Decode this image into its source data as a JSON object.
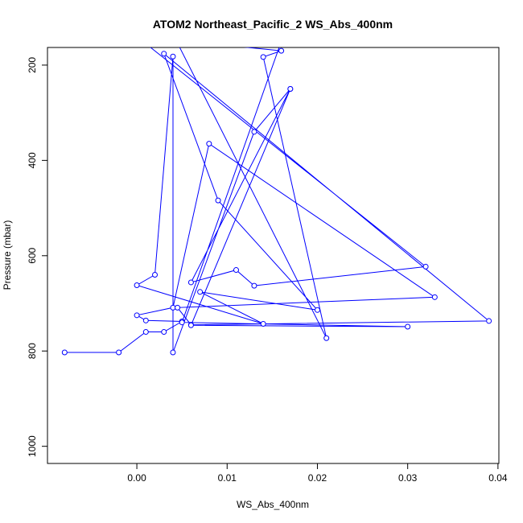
{
  "chart_data": {
    "type": "line",
    "title": "ATOM2 Northeast_Pacific_2 WS_Abs_400nm",
    "xlabel": "WS_Abs_400nm",
    "ylabel": "Pressure (mbar)",
    "xlim": [
      -0.0099,
      0.0401
    ],
    "ylim": [
      1036,
      163
    ],
    "y_reversed": true,
    "grid": false,
    "x_ticks": [
      0.0,
      0.01,
      0.02,
      0.03,
      0.04
    ],
    "x_tick_labels": [
      "0.00",
      "0.01",
      "0.02",
      "0.03",
      "0.04"
    ],
    "y_ticks": [
      200,
      400,
      600,
      800,
      1000
    ],
    "y_tick_labels": [
      "200",
      "400",
      "600",
      "800",
      "1000"
    ],
    "color": "#0000ff",
    "series": [
      {
        "x": [
          -0.008,
          -0.002,
          0.001,
          0.003,
          0.005,
          0.001,
          0.0,
          0.004,
          0.008,
          0.033,
          0.0045,
          0.006,
          0.039,
          0.003,
          0.009,
          0.02,
          0.007,
          0.014,
          0.0,
          0.002,
          0.004,
          0.004,
          0.013,
          0.017,
          0.006,
          0.011,
          0.013,
          0.032,
          0.0,
          0.016,
          0.014,
          0.021,
          0.004,
          0.016,
          0.005,
          0.03,
          0.006,
          0.017
        ],
        "y": [
          803,
          803,
          760,
          760,
          738,
          736,
          725,
          709,
          365,
          687,
          709,
          745,
          737,
          176,
          484,
          714,
          676,
          743,
          662,
          640,
          182,
          803,
          340,
          250,
          656,
          630,
          663,
          623,
          140,
          170,
          183,
          773,
          135,
          150,
          740,
          749,
          746,
          250
        ]
      }
    ]
  }
}
